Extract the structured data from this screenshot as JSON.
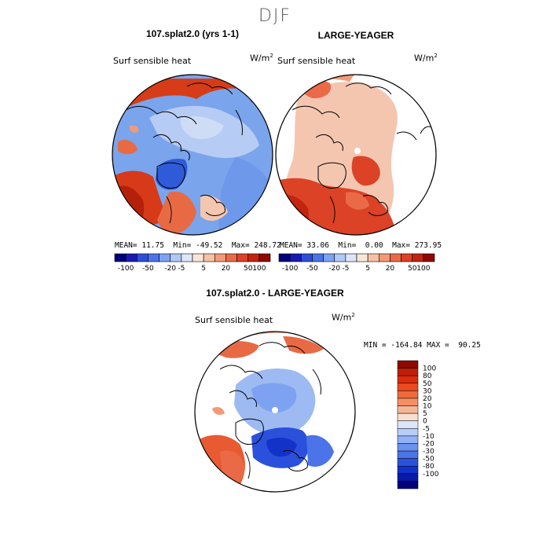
{
  "figure": {
    "season": "DJF"
  },
  "panels": {
    "top_left": {
      "title": "107.splat2.0 (yrs 1-1)",
      "variable": "Surf sensible heat",
      "units_base": "W/m",
      "units_exp": "2",
      "mean_label": "MEAN=",
      "mean": "11.75",
      "min_label": "Min=",
      "min": "-49.52",
      "max_label": "Max=",
      "max": "248.72"
    },
    "top_right": {
      "title": "LARGE-YEAGER",
      "variable": "Surf sensible heat",
      "units_base": "W/m",
      "units_exp": "2",
      "mean_label": "MEAN=",
      "mean": "33.06",
      "min_label": "Min=",
      "min": "0.00",
      "max_label": "Max=",
      "max": "273.95"
    },
    "bottom": {
      "title": "107.splat2.0 - LARGE-YEAGER",
      "variable": "Surf sensible heat",
      "units_base": "W/m",
      "units_exp": "2",
      "min_label": "MIN =",
      "min": "-164.84",
      "max_label": "MAX =",
      "max": "90.25"
    }
  },
  "colorbars": {
    "horizontal": {
      "colors": [
        "#00007a",
        "#1a1ab0",
        "#2e4ed6",
        "#4a74e8",
        "#7ea2f2",
        "#b0c8f6",
        "#dce6f8",
        "#f8e6d6",
        "#f6c2a6",
        "#f29a78",
        "#ea6a48",
        "#dc4226",
        "#c22410",
        "#8e0a00"
      ],
      "tick_labels": [
        "-100",
        "-50",
        "-20",
        "-5",
        "5",
        "20",
        "50",
        "100"
      ]
    },
    "vertical": {
      "colors_top_to_bottom": [
        "#8e0a00",
        "#c01e06",
        "#dc2c0c",
        "#ea4a1e",
        "#f06a3c",
        "#f49066",
        "#f6b696",
        "#f8ded0",
        "#dce6f8",
        "#b8cef6",
        "#90b2f4",
        "#6a92ee",
        "#4a74e8",
        "#2c52dc",
        "#1232c8",
        "#0818a8",
        "#00007a"
      ],
      "tick_labels": [
        "100",
        "80",
        "50",
        "30",
        "20",
        "10",
        "5",
        "0",
        "-5",
        "-10",
        "-20",
        "-30",
        "-50",
        "-80",
        "-100"
      ]
    }
  },
  "colors": {
    "warm_strong": "#c8280e",
    "warm_mid": "#e85a32",
    "warm_light": "#f4b294",
    "cool_light": "#b8cef4",
    "cool_mid": "#6e98ea",
    "cool_strong": "#2a50dc"
  }
}
